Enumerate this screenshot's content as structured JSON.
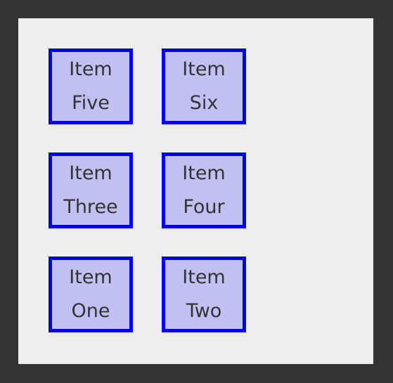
{
  "colors": {
    "frame": "#333333",
    "panel": "#eeeeee",
    "item_fill": "#c0c0f2",
    "item_border": "#0000ee",
    "item_text": "#333333"
  },
  "items": [
    {
      "line1": "Item",
      "line2": "Five"
    },
    {
      "line1": "Item",
      "line2": "Six"
    },
    {
      "line1": "Item",
      "line2": "Three"
    },
    {
      "line1": "Item",
      "line2": "Four"
    },
    {
      "line1": "Item",
      "line2": "One"
    },
    {
      "line1": "Item",
      "line2": "Two"
    }
  ]
}
